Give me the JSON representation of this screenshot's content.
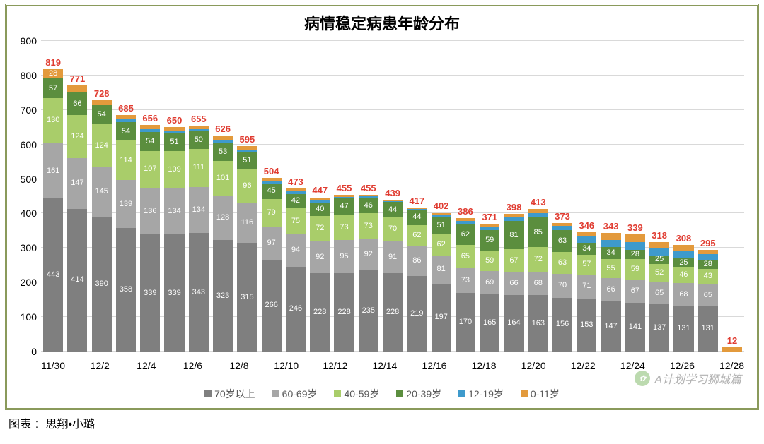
{
  "title": "病情稳定病患年龄分布",
  "title_fontsize": 22,
  "footer": "图表 ：思翔•小璐",
  "footer_fontsize": 16,
  "watermark": "A计划学习狮城篇",
  "watermark_color": "#666666",
  "chart": {
    "type": "stacked-bar",
    "background": "#ffffff",
    "frame_color": "#8a9a5b",
    "ymin": 0,
    "ymax": 900,
    "ytick_step": 100,
    "grid_color": "#d9d9d9",
    "axis_fontsize": 14,
    "seg_label_fontsize": 11,
    "total_label_fontsize": 13,
    "total_label_color": "#e03c31",
    "series": [
      {
        "key": "70+",
        "label": "70岁以上",
        "color": "#7f7f7f"
      },
      {
        "key": "60-69",
        "label": "60-69岁",
        "color": "#a6a6a6"
      },
      {
        "key": "40-59",
        "label": "40-59岁",
        "color": "#a9cd6a"
      },
      {
        "key": "20-39",
        "label": "20-39岁",
        "color": "#5b8e3e"
      },
      {
        "key": "12-19",
        "label": "12-19岁",
        "color": "#3e9acc"
      },
      {
        "key": "0-11",
        "label": "0-11岁",
        "color": "#e39a3c"
      }
    ],
    "categories": [
      "11/30",
      "12/1",
      "12/2",
      "12/3",
      "12/4",
      "12/5",
      "12/6",
      "12/7",
      "12/8",
      "12/9",
      "12/10",
      "12/11",
      "12/12",
      "12/13",
      "12/14",
      "12/15",
      "12/16",
      "12/17",
      "12/18",
      "12/19",
      "12/20",
      "12/21",
      "12/22",
      "12/23",
      "12/24",
      "12/25",
      "12/26",
      "12/27",
      "12/28"
    ],
    "x_show_every": 2,
    "data": [
      {
        "total": 819,
        "70+": 443,
        "60-69": 161,
        "40-59": 130,
        "20-39": 57,
        "12-19": 0,
        "0-11": 28
      },
      {
        "total": 771,
        "70+": 414,
        "60-69": 147,
        "40-59": 124,
        "20-39": 66,
        "12-19": 0,
        "0-11": 20
      },
      {
        "total": 728,
        "70+": 390,
        "60-69": 145,
        "40-59": 124,
        "20-39": 54,
        "12-19": 0,
        "0-11": 15
      },
      {
        "total": 685,
        "70+": 358,
        "60-69": 139,
        "40-59": 114,
        "20-39": 54,
        "12-19": 8,
        "0-11": 12
      },
      {
        "total": 656,
        "70+": 339,
        "60-69": 136,
        "40-59": 107,
        "20-39": 54,
        "12-19": 8,
        "0-11": 12
      },
      {
        "total": 650,
        "70+": 339,
        "60-69": 134,
        "40-59": 109,
        "20-39": 51,
        "12-19": 7,
        "0-11": 10
      },
      {
        "total": 655,
        "70+": 343,
        "60-69": 134,
        "40-59": 111,
        "20-39": 50,
        "12-19": 7,
        "0-11": 10
      },
      {
        "total": 626,
        "70+": 323,
        "60-69": 128,
        "40-59": 101,
        "20-39": 53,
        "12-19": 9,
        "0-11": 12
      },
      {
        "total": 595,
        "70+": 315,
        "60-69": 116,
        "40-59": 96,
        "20-39": 51,
        "12-19": 8,
        "0-11": 9
      },
      {
        "total": 504,
        "70+": 266,
        "60-69": 97,
        "40-59": 79,
        "20-39": 45,
        "12-19": 8,
        "0-11": 9
      },
      {
        "total": 473,
        "70+": 246,
        "60-69": 94,
        "40-59": 75,
        "20-39": 42,
        "12-19": 8,
        "0-11": 8
      },
      {
        "total": 447,
        "70+": 228,
        "60-69": 92,
        "40-59": 72,
        "20-39": 40,
        "12-19": 7,
        "0-11": 8
      },
      {
        "total": 455,
        "70+": 228,
        "60-69": 95,
        "40-59": 73,
        "20-39": 47,
        "12-19": 5,
        "0-11": 7
      },
      {
        "total": 455,
        "70+": 235,
        "60-69": 92,
        "40-59": 73,
        "20-39": 46,
        "12-19": 4,
        "0-11": 5
      },
      {
        "total": 439,
        "70+": 228,
        "60-69": 91,
        "40-59": 70,
        "20-39": 44,
        "12-19": 3,
        "0-11": 3
      },
      {
        "total": 417,
        "70+": 219,
        "60-69": 86,
        "40-59": 62,
        "20-39": 44,
        "12-19": 3,
        "0-11": 3
      },
      {
        "total": 402,
        "70+": 197,
        "60-69": 81,
        "40-59": 62,
        "20-39": 51,
        "12-19": 6,
        "0-11": 5
      },
      {
        "total": 386,
        "70+": 170,
        "60-69": 73,
        "40-59": 65,
        "20-39": 62,
        "12-19": 9,
        "0-11": 7
      },
      {
        "total": 371,
        "70+": 165,
        "60-69": 69,
        "40-59": 59,
        "20-39": 59,
        "12-19": 10,
        "0-11": 9
      },
      {
        "total": 398,
        "70+": 164,
        "60-69": 66,
        "40-59": 67,
        "20-39": 81,
        "12-19": 10,
        "0-11": 10
      },
      {
        "total": 413,
        "70+": 163,
        "60-69": 68,
        "40-59": 72,
        "20-39": 85,
        "12-19": 13,
        "0-11": 12
      },
      {
        "total": 373,
        "70+": 156,
        "60-69": 70,
        "40-59": 63,
        "20-39": 63,
        "12-19": 13,
        "0-11": 8
      },
      {
        "total": 346,
        "70+": 153,
        "60-69": 71,
        "40-59": 57,
        "20-39": 34,
        "12-19": 18,
        "0-11": 13
      },
      {
        "total": 343,
        "70+": 147,
        "60-69": 66,
        "40-59": 55,
        "20-39": 34,
        "12-19": 22,
        "0-11": 19
      },
      {
        "total": 339,
        "70+": 141,
        "60-69": 67,
        "40-59": 59,
        "20-39": 28,
        "12-19": 22,
        "0-11": 22
      },
      {
        "total": 318,
        "70+": 137,
        "60-69": 65,
        "40-59": 52,
        "20-39": 25,
        "12-19": 21,
        "0-11": 18
      },
      {
        "total": 308,
        "70+": 131,
        "60-69": 68,
        "40-59": 46,
        "20-39": 25,
        "12-19": 22,
        "0-11": 16
      },
      {
        "total": 295,
        "70+": 131,
        "60-69": 65,
        "40-59": 43,
        "20-39": 28,
        "12-19": 16,
        "0-11": 12
      },
      {
        "total": 12,
        "70+": 0,
        "60-69": 0,
        "40-59": 0,
        "20-39": 0,
        "12-19": 0,
        "0-11": 12
      }
    ]
  }
}
